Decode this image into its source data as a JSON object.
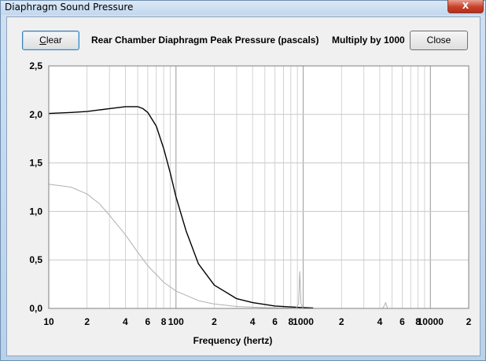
{
  "window": {
    "title": "Diaphragm Sound Pressure",
    "close_glyph": "X"
  },
  "toolbar": {
    "clear_label_mnemonic": "C",
    "clear_label_rest": "lear",
    "close_label": "Close",
    "header": "Rear Chamber Diaphragm Peak Pressure (pascals)",
    "multiplier": "Multiply by 1000"
  },
  "colors": {
    "plot_bg": "#ffffff",
    "grid": "#c8c8c8",
    "series_main": "#000000",
    "series_secondary": "#b0b0b0"
  },
  "chart_data": {
    "type": "line",
    "title": "Rear Chamber Diaphragm Peak Pressure (pascals)",
    "xlabel": "Frequency (hertz)",
    "ylabel": "",
    "x_scale": "log",
    "xlim": [
      10,
      20000
    ],
    "ylim": [
      0,
      2.5
    ],
    "grid": true,
    "y_ticks": [
      "0,0",
      "0,5",
      "1,0",
      "1,5",
      "2,0",
      "2,5"
    ],
    "y_tick_values": [
      0,
      0.5,
      1.0,
      1.5,
      2.0,
      2.5
    ],
    "x_ticks": [
      "10",
      "2",
      "4",
      "6",
      "8",
      "100",
      "2",
      "4",
      "6",
      "8",
      "1000",
      "2",
      "4",
      "6",
      "8",
      "10000",
      "2"
    ],
    "x_tick_values": [
      10,
      20,
      40,
      60,
      80,
      100,
      200,
      400,
      600,
      800,
      1000,
      2000,
      4000,
      6000,
      8000,
      10000,
      20000
    ],
    "series": [
      {
        "color": "#000000",
        "x": [
          10,
          15,
          20,
          30,
          40,
          50,
          55,
          60,
          70,
          80,
          90,
          100,
          120,
          150,
          200,
          300,
          400,
          600,
          1000,
          1200
        ],
        "y": [
          2.01,
          2.02,
          2.03,
          2.06,
          2.08,
          2.08,
          2.06,
          2.02,
          1.88,
          1.65,
          1.4,
          1.15,
          0.8,
          0.46,
          0.24,
          0.1,
          0.06,
          0.025,
          0.008,
          0.004
        ]
      },
      {
        "color": "#b0b0b0",
        "x": [
          10,
          15,
          20,
          25,
          30,
          40,
          50,
          60,
          80,
          100,
          150,
          200,
          300,
          500,
          800,
          1000
        ],
        "y": [
          1.28,
          1.25,
          1.18,
          1.08,
          0.96,
          0.76,
          0.58,
          0.44,
          0.27,
          0.18,
          0.08,
          0.045,
          0.02,
          0.008,
          0.003,
          0.002
        ]
      },
      {
        "color": "#b0b0b0",
        "x": [
          880,
          920,
          940,
          960,
          1000
        ],
        "y": [
          0.0,
          0.05,
          0.38,
          0.05,
          0.0
        ]
      },
      {
        "color": "#b0b0b0",
        "x": [
          4200,
          4350,
          4450,
          4600
        ],
        "y": [
          0.0,
          0.03,
          0.06,
          0.0
        ]
      }
    ]
  }
}
